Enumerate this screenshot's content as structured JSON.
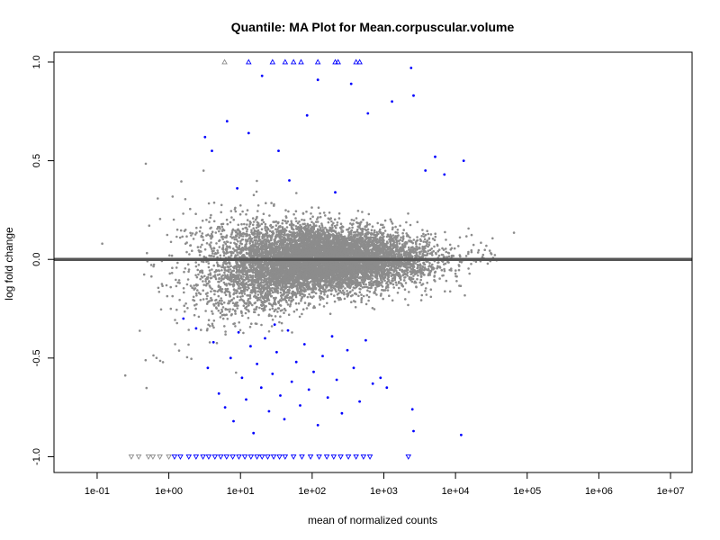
{
  "chart_data": {
    "type": "scatter",
    "title": "Quantile: MA Plot for Mean.corpuscular.volume",
    "xlabel": "mean of normalized counts",
    "ylabel": "log fold change",
    "x_scale": "log10",
    "xlim": [
      0.025,
      20000000
    ],
    "ylim": [
      -1.08,
      1.05
    ],
    "x_ticks": [
      {
        "value": 0.1,
        "label": "1e-01"
      },
      {
        "value": 1,
        "label": "1e+00"
      },
      {
        "value": 10,
        "label": "1e+01"
      },
      {
        "value": 100,
        "label": "1e+02"
      },
      {
        "value": 1000,
        "label": "1e+03"
      },
      {
        "value": 10000,
        "label": "1e+04"
      },
      {
        "value": 100000,
        "label": "1e+05"
      },
      {
        "value": 1000000,
        "label": "1e+06"
      },
      {
        "value": 10000000,
        "label": "1e+07"
      }
    ],
    "y_ticks": [
      {
        "value": -1.0,
        "label": "-1.0"
      },
      {
        "value": -0.5,
        "label": "-0.5"
      },
      {
        "value": 0.0,
        "label": "0.0"
      },
      {
        "value": 0.5,
        "label": "0.5"
      },
      {
        "value": 1.0,
        "label": "1.0"
      }
    ],
    "reference_line": {
      "y": 0,
      "color": "#555555"
    },
    "grid": false,
    "colors": {
      "not_significant": "#8c8c8c",
      "significant": "#0000ff"
    },
    "series": [
      {
        "group": "not significant",
        "color": "#8c8c8c",
        "density_model": {
          "count": 9000,
          "log10_mean_center": 2.1,
          "log10_mean_spread": 0.75
        }
      },
      {
        "group": "significant",
        "color": "#0000ff",
        "points": [
          [
            3.5,
            -0.55
          ],
          [
            4.2,
            -0.42
          ],
          [
            5.0,
            -0.68
          ],
          [
            6.1,
            -0.75
          ],
          [
            7.3,
            -0.5
          ],
          [
            8.0,
            -0.82
          ],
          [
            9.4,
            -0.37
          ],
          [
            10.5,
            -0.6
          ],
          [
            12.0,
            -0.71
          ],
          [
            13.8,
            -0.44
          ],
          [
            15.2,
            -0.88
          ],
          [
            17.0,
            -0.53
          ],
          [
            19.5,
            -0.65
          ],
          [
            22.0,
            -0.4
          ],
          [
            25.0,
            -0.77
          ],
          [
            28.0,
            -0.58
          ],
          [
            32.0,
            -0.47
          ],
          [
            36.0,
            -0.69
          ],
          [
            41.0,
            -0.81
          ],
          [
            46.0,
            -0.36
          ],
          [
            52.0,
            -0.62
          ],
          [
            60.0,
            -0.52
          ],
          [
            68.0,
            -0.74
          ],
          [
            78.0,
            -0.43
          ],
          [
            90.0,
            -0.66
          ],
          [
            105.0,
            -0.57
          ],
          [
            120.0,
            -0.84
          ],
          [
            140.0,
            -0.49
          ],
          [
            165.0,
            -0.7
          ],
          [
            190.0,
            -0.39
          ],
          [
            220.0,
            -0.61
          ],
          [
            260.0,
            -0.78
          ],
          [
            310.0,
            -0.46
          ],
          [
            380.0,
            -0.55
          ],
          [
            460.0,
            -0.72
          ],
          [
            560.0,
            -0.41
          ],
          [
            700.0,
            -0.63
          ],
          [
            900.0,
            -0.6
          ],
          [
            1100.0,
            -0.65
          ],
          [
            2500.0,
            -0.76
          ],
          [
            2600.0,
            -0.87
          ],
          [
            12000.0,
            -0.89
          ],
          [
            1.6,
            -0.3
          ],
          [
            2.4,
            -0.35
          ],
          [
            30.0,
            -0.33
          ],
          [
            3.2,
            0.62
          ],
          [
            4.0,
            0.55
          ],
          [
            6.5,
            0.7
          ],
          [
            9.0,
            0.36
          ],
          [
            13.0,
            0.64
          ],
          [
            20.0,
            0.93
          ],
          [
            34.0,
            0.55
          ],
          [
            48.0,
            0.4
          ],
          [
            85.0,
            0.73
          ],
          [
            120.0,
            0.91
          ],
          [
            210.0,
            0.34
          ],
          [
            350.0,
            0.89
          ],
          [
            600.0,
            0.74
          ],
          [
            1300.0,
            0.8
          ],
          [
            2600.0,
            0.83
          ],
          [
            3800.0,
            0.45
          ],
          [
            5200.0,
            0.52
          ],
          [
            7000.0,
            0.43
          ],
          [
            13000.0,
            0.5
          ],
          [
            2400.0,
            0.97
          ]
        ]
      }
    ],
    "clipped_markers": {
      "top_y": 1.0,
      "top": [
        {
          "x": 6.0,
          "color": "#8c8c8c"
        },
        {
          "x": 13.0,
          "color": "#0000ff"
        },
        {
          "x": 28.0,
          "color": "#0000ff"
        },
        {
          "x": 42.0,
          "color": "#0000ff"
        },
        {
          "x": 55.0,
          "color": "#0000ff"
        },
        {
          "x": 70.0,
          "color": "#0000ff"
        },
        {
          "x": 120.0,
          "color": "#0000ff"
        },
        {
          "x": 210.0,
          "color": "#0000ff"
        },
        {
          "x": 230.0,
          "color": "#0000ff"
        },
        {
          "x": 410.0,
          "color": "#0000ff"
        },
        {
          "x": 460.0,
          "color": "#0000ff"
        }
      ],
      "bottom_y": -1.0,
      "bottom": [
        {
          "x": 0.3,
          "color": "#8c8c8c"
        },
        {
          "x": 0.38,
          "color": "#8c8c8c"
        },
        {
          "x": 0.52,
          "color": "#8c8c8c"
        },
        {
          "x": 0.6,
          "color": "#8c8c8c"
        },
        {
          "x": 0.75,
          "color": "#8c8c8c"
        },
        {
          "x": 1.0,
          "color": "#8c8c8c"
        },
        {
          "x": 1.2,
          "color": "#0000ff"
        },
        {
          "x": 1.45,
          "color": "#0000ff"
        },
        {
          "x": 1.9,
          "color": "#0000ff"
        },
        {
          "x": 2.4,
          "color": "#0000ff"
        },
        {
          "x": 3.0,
          "color": "#0000ff"
        },
        {
          "x": 3.6,
          "color": "#0000ff"
        },
        {
          "x": 4.4,
          "color": "#0000ff"
        },
        {
          "x": 5.3,
          "color": "#0000ff"
        },
        {
          "x": 6.4,
          "color": "#0000ff"
        },
        {
          "x": 7.8,
          "color": "#0000ff"
        },
        {
          "x": 9.5,
          "color": "#0000ff"
        },
        {
          "x": 11.5,
          "color": "#0000ff"
        },
        {
          "x": 14.0,
          "color": "#0000ff"
        },
        {
          "x": 17.0,
          "color": "#0000ff"
        },
        {
          "x": 20.0,
          "color": "#0000ff"
        },
        {
          "x": 24.0,
          "color": "#0000ff"
        },
        {
          "x": 29.0,
          "color": "#0000ff"
        },
        {
          "x": 35.0,
          "color": "#0000ff"
        },
        {
          "x": 42.0,
          "color": "#0000ff"
        },
        {
          "x": 55.0,
          "color": "#0000ff"
        },
        {
          "x": 72.0,
          "color": "#0000ff"
        },
        {
          "x": 95.0,
          "color": "#0000ff"
        },
        {
          "x": 125.0,
          "color": "#0000ff"
        },
        {
          "x": 160.0,
          "color": "#0000ff"
        },
        {
          "x": 200.0,
          "color": "#0000ff"
        },
        {
          "x": 250.0,
          "color": "#0000ff"
        },
        {
          "x": 320.0,
          "color": "#0000ff"
        },
        {
          "x": 410.0,
          "color": "#0000ff"
        },
        {
          "x": 520.0,
          "color": "#0000ff"
        },
        {
          "x": 640.0,
          "color": "#0000ff"
        },
        {
          "x": 2200.0,
          "color": "#0000ff"
        }
      ]
    }
  }
}
